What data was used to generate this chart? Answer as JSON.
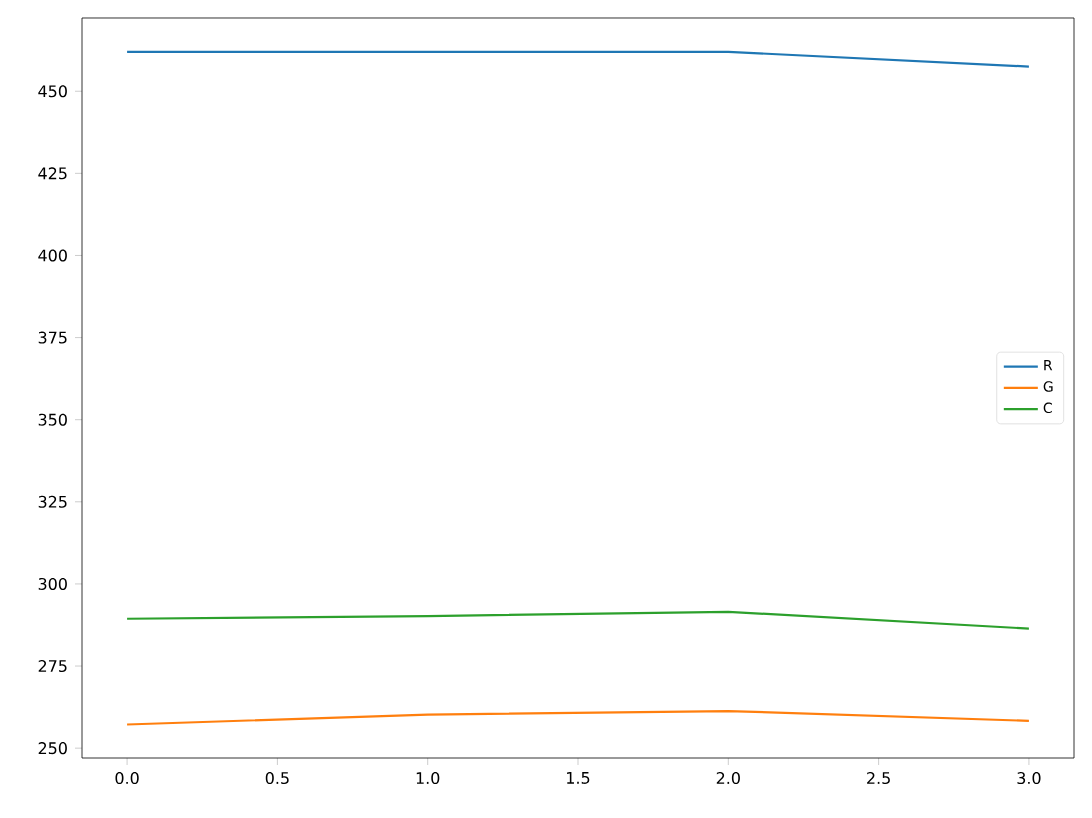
{
  "chart_data": {
    "type": "line",
    "x": [
      0,
      1,
      2,
      3
    ],
    "series": [
      {
        "name": "R",
        "color": "#1f77b4",
        "values": [
          462,
          462,
          462,
          457.5
        ]
      },
      {
        "name": "G",
        "color": "#ff7f0e",
        "values": [
          257.2,
          260.2,
          261.3,
          258.3
        ]
      },
      {
        "name": "C",
        "color": "#2ca02c",
        "values": [
          289.4,
          290.2,
          291.5,
          286.4
        ]
      }
    ],
    "xlim": [
      -0.15,
      3.15
    ],
    "ylim": [
      247,
      472.3
    ],
    "xticks": [
      {
        "value": 0,
        "label": "0.0"
      },
      {
        "value": 0.5,
        "label": "0.5"
      },
      {
        "value": 1,
        "label": "1.0"
      },
      {
        "value": 1.5,
        "label": "1.5"
      },
      {
        "value": 2,
        "label": "2.0"
      },
      {
        "value": 2.5,
        "label": "2.5"
      },
      {
        "value": 3,
        "label": "3.0"
      }
    ],
    "yticks": [
      250,
      275,
      300,
      325,
      350,
      375,
      400,
      425,
      450
    ],
    "legend": "right",
    "grid": false,
    "marker": "none",
    "line_style": "solid"
  }
}
